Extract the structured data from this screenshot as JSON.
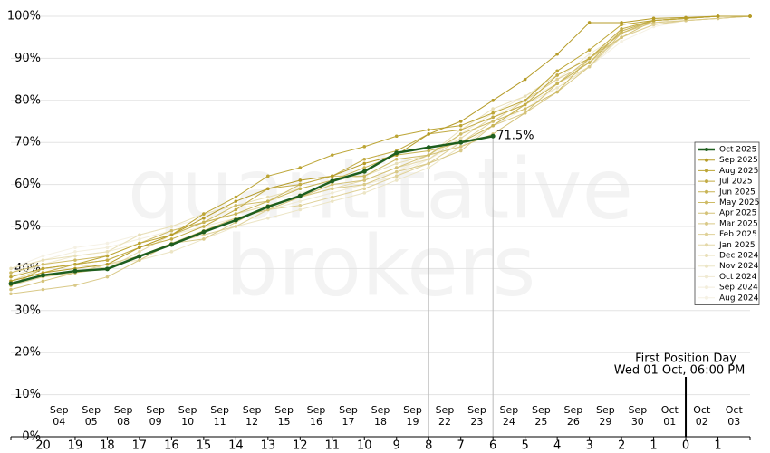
{
  "chart_data": {
    "type": "line",
    "categories": [
      null,
      "20",
      "19",
      "18",
      "17",
      "16",
      "15",
      "14",
      "13",
      "12",
      "11",
      "10",
      "9",
      "8",
      "7",
      "6",
      "5",
      "4",
      "3",
      "2",
      "1",
      "0",
      "1",
      null
    ],
    "dates": [
      [
        "Sep",
        "04"
      ],
      [
        "Sep",
        "05"
      ],
      [
        "Sep",
        "08"
      ],
      [
        "Sep",
        "09"
      ],
      [
        "Sep",
        "10"
      ],
      [
        "Sep",
        "11"
      ],
      [
        "Sep",
        "12"
      ],
      [
        "Sep",
        "15"
      ],
      [
        "Sep",
        "16"
      ],
      [
        "Sep",
        "17"
      ],
      [
        "Sep",
        "18"
      ],
      [
        "Sep",
        "19"
      ],
      [
        "Sep",
        "22"
      ],
      [
        "Sep",
        "23"
      ],
      [
        "Sep",
        "24"
      ],
      [
        "Sep",
        "25"
      ],
      [
        "Sep",
        "26"
      ],
      [
        "Sep",
        "29"
      ],
      [
        "Sep",
        "30"
      ],
      [
        "Oct",
        "01"
      ],
      [
        "Oct",
        "02"
      ],
      [
        "Oct",
        "03"
      ]
    ],
    "annotation": [
      "First Position Day",
      "Wed 01 Oct, 06:00 PM"
    ],
    "watermark": [
      "quantitative",
      "brokers"
    ],
    "ylim": [
      0,
      100
    ],
    "yticks": [
      {
        "value": 0,
        "label": "0%"
      },
      {
        "value": 10,
        "label": "10%"
      },
      {
        "value": 20,
        "label": "20%"
      },
      {
        "value": 30,
        "label": "30%"
      },
      {
        "value": 40,
        "label": "40%"
      },
      {
        "value": 50,
        "label": "50%"
      },
      {
        "value": 60,
        "label": "60%"
      },
      {
        "value": 70,
        "label": "70%"
      },
      {
        "value": 80,
        "label": "80%"
      },
      {
        "value": 90,
        "label": "90%"
      },
      {
        "value": 100,
        "label": "100%"
      }
    ],
    "grid": true,
    "legend": "right",
    "series": [
      {
        "name": "Oct 2025",
        "color": "#1e5e1e",
        "values": [
          36.4,
          38.4,
          39.4,
          39.9,
          42.9,
          45.7,
          48.7,
          51.5,
          54.7,
          57.3,
          60.8,
          63.1,
          67.5,
          68.8,
          70,
          71.5,
          null,
          null,
          null,
          null,
          null,
          null,
          null,
          null
        ],
        "value_labels": [
          null,
          null,
          null,
          null,
          null,
          null,
          null,
          null,
          null,
          null,
          null,
          null,
          null,
          null,
          null,
          "71.5%",
          null,
          null,
          null,
          null,
          null,
          null,
          null,
          null
        ]
      },
      {
        "name": "Sep 2025",
        "color": "#b59b27",
        "values": [
          37,
          39,
          40,
          41,
          45,
          48,
          52,
          56,
          59,
          61,
          62,
          65,
          67,
          72,
          75,
          80,
          85,
          91,
          98.5,
          98.5,
          99.5,
          99.7,
          100,
          100
        ]
      },
      {
        "name": "Aug 2025",
        "color": "#bca535",
        "values": [
          38,
          40,
          41,
          43,
          46,
          48,
          53,
          57,
          62,
          64,
          67,
          69,
          71.5,
          73,
          74,
          77,
          80,
          87,
          92,
          98,
          99,
          99.5,
          100,
          100
        ]
      },
      {
        "name": "Jul 2025",
        "color": "#c2ab45",
        "values": [
          37,
          39,
          41,
          42,
          45,
          47,
          50,
          54,
          59,
          60,
          62,
          66,
          68,
          72,
          73,
          76,
          79,
          86,
          90,
          97,
          99,
          99.5,
          100,
          100
        ]
      },
      {
        "name": "Jun 2025",
        "color": "#c8b455",
        "values": [
          36,
          40,
          41,
          42,
          45,
          48,
          51,
          53,
          56,
          59,
          61,
          64,
          67,
          68,
          70,
          74,
          79,
          84,
          89,
          96.5,
          99,
          99.5,
          100,
          100
        ]
      },
      {
        "name": "May 2025",
        "color": "#cebb66",
        "values": [
          39,
          41,
          42,
          43,
          46,
          49,
          51,
          55,
          56,
          60,
          62,
          62,
          66,
          67,
          72,
          75,
          78,
          82,
          90,
          96,
          99,
          99.5,
          100,
          100
        ]
      },
      {
        "name": "Apr 2025",
        "color": "#d4c278",
        "values": [
          35,
          37,
          39,
          40,
          43,
          46,
          49,
          52,
          54,
          57,
          60,
          61,
          64,
          67,
          69,
          72,
          77,
          84,
          90,
          95,
          99,
          99.5,
          100,
          100
        ]
      },
      {
        "name": "Mar 2025",
        "color": "#d9c988",
        "values": [
          34,
          35,
          36,
          38,
          42,
          46,
          47,
          51,
          55,
          57,
          59,
          60,
          63,
          65,
          68,
          74,
          77,
          82,
          88,
          96,
          98.5,
          99,
          99.5,
          100
        ]
      },
      {
        "name": "Feb 2025",
        "color": "#dfd198",
        "values": [
          36,
          38,
          39,
          41,
          43,
          46,
          48,
          50,
          54,
          55,
          57,
          59,
          62,
          65,
          70,
          75,
          80,
          85,
          89,
          95,
          98,
          99,
          99.5,
          100
        ]
      },
      {
        "name": "Jan 2025",
        "color": "#e4d8a8",
        "values": [
          37,
          40,
          41,
          40,
          44,
          48,
          51,
          53,
          55,
          57,
          59,
          61,
          64,
          66,
          71,
          76,
          79,
          84,
          88,
          97,
          99,
          99.5,
          100,
          100
        ]
      },
      {
        "name": "Dec 2024",
        "color": "#e8dfb7",
        "values": [
          40,
          42,
          43,
          44,
          48,
          50,
          53,
          55,
          57,
          59,
          61,
          62,
          65,
          67,
          73,
          78,
          81,
          86,
          90,
          96,
          99,
          99.5,
          100,
          100
        ]
      },
      {
        "name": "Nov 2024",
        "color": "#ece5c5",
        "values": [
          36,
          38,
          39,
          41,
          42,
          44,
          47,
          50,
          52,
          54,
          56,
          58,
          61,
          64,
          69,
          74,
          79,
          83,
          88,
          95,
          98,
          99,
          99.5,
          100
        ]
      },
      {
        "name": "Oct 2024",
        "color": "#f0ead2",
        "values": [
          38,
          41,
          43,
          44,
          46,
          48,
          50,
          52,
          54,
          56,
          58,
          60,
          62,
          66,
          72,
          77,
          81,
          85,
          91,
          96,
          98.5,
          99.5,
          100,
          100
        ]
      },
      {
        "name": "Sep 2024",
        "color": "#f3eedc",
        "values": [
          39,
          42,
          44,
          45,
          47,
          49,
          51,
          53,
          55,
          57,
          59,
          61,
          63,
          67,
          71,
          76,
          80,
          84,
          89,
          95,
          98,
          99,
          99.5,
          100
        ]
      },
      {
        "name": "Aug 2024",
        "color": "#f5f1e4",
        "values": [
          40,
          43,
          45,
          46,
          48,
          50,
          52,
          54,
          56,
          58,
          60,
          61,
          63,
          66,
          70,
          74,
          78,
          83,
          88,
          94,
          97.5,
          99,
          99.5,
          100
        ]
      }
    ]
  }
}
